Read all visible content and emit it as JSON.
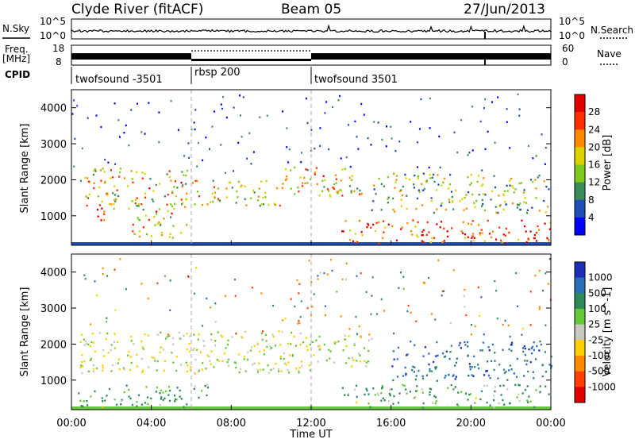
{
  "header": {
    "station": "Clyde River (fitACF)",
    "beam": "Beam 05",
    "date": "27/Jun/2013"
  },
  "strips": {
    "nsky_label": "N.Sky",
    "nsearch_label": "N.Search",
    "freq_label_1": "Freq.",
    "freq_label_2": "[MHz]",
    "nave_label": "Nave",
    "cpid_label": "CPID",
    "noise_left_ticks": [
      "10^5",
      "10^0"
    ],
    "noise_right_ticks": [
      "10^5",
      "10^0"
    ],
    "freq_left_ticks": [
      "18",
      "8"
    ],
    "nave_right_ticks": [
      "60",
      "0"
    ],
    "cpid_segments": [
      {
        "label": "twofsound -3501",
        "start_h": 0
      },
      {
        "label": "rbsp 200",
        "start_h": 6
      },
      {
        "label": "twofsound 3501",
        "start_h": 12
      }
    ]
  },
  "x_axis": {
    "title": "Time UT",
    "ticks": [
      "00:00",
      "04:00",
      "08:00",
      "12:00",
      "16:00",
      "20:00",
      "00:00"
    ],
    "range_hours": [
      0,
      24
    ]
  },
  "colors": {
    "power": [
      "#0000ff",
      "#1f4fb5",
      "#3c8c5a",
      "#7fc81e",
      "#dcd200",
      "#ff8c00",
      "#ff3000",
      "#e00000"
    ],
    "velocity": [
      "#1c2fb4",
      "#2a6fb8",
      "#2e8b57",
      "#65c83a",
      "#c8c8c0",
      "#ffcf00",
      "#ff8c00",
      "#ff4000",
      "#e00000"
    ]
  },
  "chart_data": [
    {
      "type": "heatmap",
      "panel": "power",
      "xlabel": "",
      "ylabel": "Slant Range [km]",
      "ylim": [
        180,
        4500
      ],
      "yticks": [
        "1000",
        "2000",
        "3000",
        "4000"
      ],
      "colorbar": {
        "label": "Power [dB]",
        "range": [
          0,
          32
        ],
        "ticks": [
          "4",
          "8",
          "12",
          "16",
          "20",
          "24",
          "28"
        ]
      },
      "regions": [
        {
          "t0": 0.4,
          "t1": 3.0,
          "r0": 1200,
          "r1": 2400,
          "level": 0.55
        },
        {
          "t0": 1.0,
          "t1": 2.0,
          "r0": 900,
          "r1": 1300,
          "level": 0.85
        },
        {
          "t0": 3.0,
          "t1": 5.8,
          "r0": 400,
          "r1": 2300,
          "level": 0.6
        },
        {
          "t0": 6.0,
          "t1": 10.5,
          "r0": 1300,
          "r1": 2000,
          "level": 0.55
        },
        {
          "t0": 10.5,
          "t1": 14.5,
          "r0": 1500,
          "r1": 2400,
          "level": 0.6
        },
        {
          "t0": 13.5,
          "t1": 24.0,
          "r0": 250,
          "r1": 900,
          "level": 0.8
        },
        {
          "t0": 15.0,
          "t1": 24.0,
          "r0": 1100,
          "r1": 2200,
          "level": 0.45
        }
      ]
    },
    {
      "type": "heatmap",
      "panel": "velocity",
      "xlabel": "Time UT",
      "ylabel": "Slant Range [km]",
      "ylim": [
        180,
        4500
      ],
      "yticks": [
        "1000",
        "2000",
        "3000",
        "4000"
      ],
      "colorbar": {
        "label": "Velocity [m s^-1]",
        "ticks": [
          "1000",
          "500",
          "100",
          "25",
          "-25",
          "-100",
          "-500",
          "-1000"
        ]
      },
      "regions": [
        {
          "t0": 0.4,
          "t1": 12.0,
          "r0": 1200,
          "r1": 2400,
          "value": 0
        },
        {
          "t0": 12.0,
          "t1": 15.0,
          "r0": 1400,
          "r1": 2300,
          "value": 0
        },
        {
          "t0": 0.3,
          "t1": 5.8,
          "r0": 250,
          "r1": 900,
          "value": 150
        },
        {
          "t0": 6.0,
          "t1": 7.0,
          "r0": 500,
          "r1": 1000,
          "value": 200
        },
        {
          "t0": 13.5,
          "t1": 24.0,
          "r0": 250,
          "r1": 900,
          "value": 150
        },
        {
          "t0": 16.0,
          "t1": 24.0,
          "r0": 1000,
          "r1": 2100,
          "value": 700
        }
      ]
    }
  ]
}
